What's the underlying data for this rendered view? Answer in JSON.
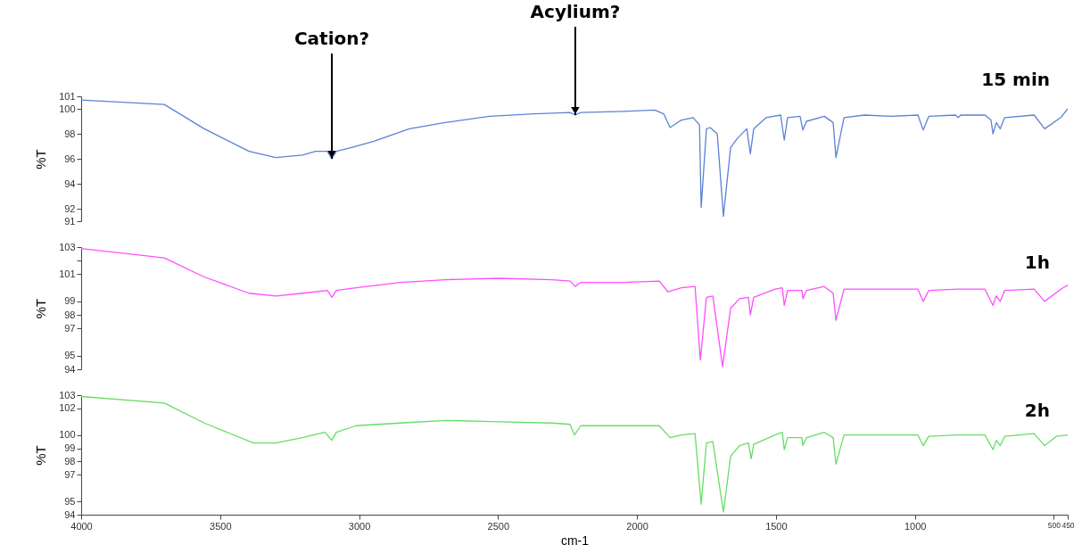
{
  "chart_data": [
    {
      "type": "line",
      "ylabel": "%T",
      "xlim": [
        4000,
        450
      ],
      "ylim": [
        91,
        101
      ],
      "yticks": [
        91,
        92,
        94,
        96,
        98,
        100,
        101
      ],
      "tick_labels": "y",
      "annotations": [
        {
          "text": "Cation?",
          "x": 3098,
          "y": 96.0
        },
        {
          "text": "Acylium?",
          "x": 2222,
          "y": 99.5
        }
      ],
      "x": [
        4000,
        3701,
        3557,
        3396,
        3300,
        3204,
        3156,
        3114,
        3098,
        3082,
        3027,
        2947,
        2819,
        2690,
        2530,
        2369,
        2241,
        2222,
        2202,
        2048,
        1936,
        1904,
        1881,
        1840,
        1798,
        1775,
        1769,
        1750,
        1737,
        1711,
        1689,
        1663,
        1640,
        1605,
        1592,
        1580,
        1535,
        1483,
        1470,
        1458,
        1413,
        1403,
        1390,
        1326,
        1294,
        1284,
        1255,
        1181,
        1085,
        989,
        970,
        950,
        854,
        844,
        835,
        748,
        726,
        719,
        707,
        693,
        677,
        571,
        533,
        475,
        450
      ],
      "series": [
        {
          "name": "15 min",
          "color": "#5b82d6",
          "values": [
            100.7,
            100.35,
            98.4,
            96.6,
            96.1,
            96.3,
            96.6,
            96.6,
            96.0,
            96.6,
            96.9,
            97.4,
            98.4,
            98.9,
            99.4,
            99.6,
            99.7,
            99.5,
            99.7,
            99.8,
            99.9,
            99.6,
            98.5,
            99.1,
            99.3,
            98.7,
            92.1,
            98.4,
            98.5,
            98.0,
            91.4,
            96.9,
            97.6,
            98.4,
            96.4,
            98.4,
            99.3,
            99.5,
            97.5,
            99.3,
            99.4,
            98.3,
            99.0,
            99.4,
            98.9,
            96.1,
            99.3,
            99.5,
            99.4,
            99.5,
            98.3,
            99.4,
            99.5,
            99.3,
            99.5,
            99.5,
            99.1,
            98.0,
            98.9,
            98.4,
            99.3,
            99.5,
            98.4,
            99.3,
            100.0
          ]
        }
      ]
    },
    {
      "type": "line",
      "ylabel": "%T",
      "xlim": [
        4000,
        450
      ],
      "ylim": [
        94,
        103
      ],
      "yticks": [
        94,
        95,
        97,
        98,
        99,
        101,
        {
          "value": 102,
          "label": null
        },
        103
      ],
      "tick_labels": "y",
      "x": [
        4000,
        3701,
        3557,
        3396,
        3300,
        3204,
        3114,
        3098,
        3082,
        3011,
        2851,
        2690,
        2498,
        2305,
        2241,
        2222,
        2202,
        2048,
        1920,
        1888,
        1840,
        1791,
        1772,
        1750,
        1727,
        1692,
        1663,
        1631,
        1599,
        1592,
        1580,
        1503,
        1477,
        1470,
        1458,
        1406,
        1403,
        1390,
        1326,
        1294,
        1284,
        1255,
        1085,
        989,
        970,
        950,
        844,
        748,
        719,
        707,
        693,
        677,
        571,
        533,
        475,
        450
      ],
      "series": [
        {
          "name": "1h",
          "color": "#ff4dff",
          "values": [
            102.9,
            102.2,
            100.8,
            99.6,
            99.4,
            99.6,
            99.8,
            99.3,
            99.8,
            100.0,
            100.4,
            100.6,
            100.7,
            100.6,
            100.5,
            100.1,
            100.4,
            100.4,
            100.5,
            99.7,
            100.0,
            100.1,
            94.7,
            99.3,
            99.4,
            94.2,
            98.5,
            99.2,
            99.3,
            98.0,
            99.3,
            99.9,
            100.0,
            98.7,
            99.8,
            99.8,
            99.2,
            99.8,
            100.1,
            99.6,
            97.6,
            99.9,
            99.9,
            99.9,
            99.0,
            99.8,
            99.9,
            99.9,
            98.7,
            99.4,
            99.0,
            99.8,
            99.9,
            99.0,
            99.9,
            100.2
          ]
        }
      ]
    },
    {
      "type": "line",
      "ylabel": "%T",
      "xlabel": "cm-1",
      "xlim": [
        4000,
        450
      ],
      "xticks": [
        4000,
        3500,
        3000,
        2500,
        2000,
        1500,
        1000,
        500,
        450
      ],
      "ylim": [
        94,
        103
      ],
      "yticks": [
        94,
        95,
        97,
        98,
        99,
        100,
        102,
        103
      ],
      "x": [
        4000,
        3701,
        3557,
        3380,
        3300,
        3204,
        3123,
        3098,
        3082,
        3011,
        2851,
        2690,
        2498,
        2305,
        2241,
        2225,
        2202,
        2048,
        1920,
        1881,
        1840,
        1791,
        1769,
        1750,
        1727,
        1689,
        1663,
        1631,
        1599,
        1589,
        1580,
        1503,
        1477,
        1470,
        1458,
        1406,
        1403,
        1390,
        1326,
        1294,
        1284,
        1255,
        1085,
        989,
        970,
        950,
        844,
        748,
        719,
        707,
        693,
        677,
        571,
        533,
        491,
        450
      ],
      "series": [
        {
          "name": "2h",
          "color": "#66dd66",
          "values": [
            102.9,
            102.4,
            100.9,
            99.4,
            99.4,
            99.8,
            100.2,
            99.6,
            100.2,
            100.7,
            100.9,
            101.1,
            101.0,
            100.9,
            100.8,
            100.0,
            100.7,
            100.7,
            100.7,
            99.8,
            100.0,
            100.1,
            94.8,
            99.4,
            99.5,
            94.2,
            98.4,
            99.2,
            99.4,
            98.2,
            99.3,
            100.0,
            100.2,
            98.9,
            99.8,
            99.8,
            99.2,
            99.8,
            100.2,
            99.8,
            97.8,
            100.0,
            100.0,
            100.0,
            99.2,
            99.9,
            100.0,
            100.0,
            98.9,
            99.6,
            99.2,
            99.9,
            100.1,
            99.2,
            99.9,
            100.0
          ]
        }
      ]
    }
  ]
}
